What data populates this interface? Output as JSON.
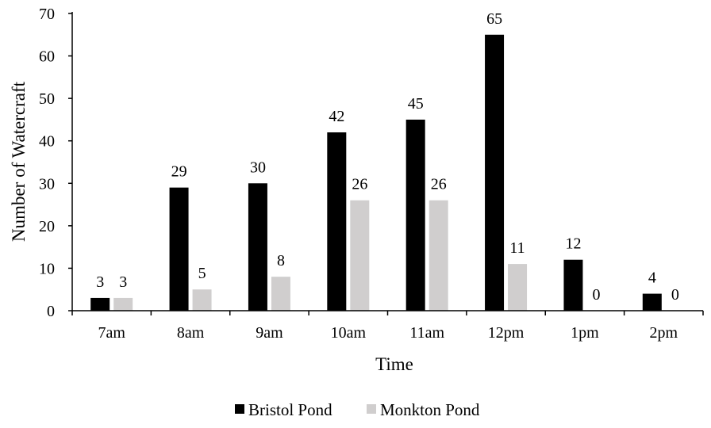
{
  "chart_data": {
    "type": "bar",
    "xlabel": "Time",
    "ylabel": "Number of Watercraft",
    "ylim": [
      0,
      70
    ],
    "yticks": [
      0,
      10,
      20,
      30,
      40,
      50,
      60,
      70
    ],
    "categories": [
      "7am",
      "8am",
      "9am",
      "10am",
      "11am",
      "12pm",
      "1pm",
      "2pm"
    ],
    "series": [
      {
        "name": "Bristol Pond",
        "color": "#000000",
        "values": [
          3,
          29,
          30,
          42,
          45,
          65,
          12,
          4
        ]
      },
      {
        "name": "Monkton Pond",
        "color": "#d0cece",
        "values": [
          3,
          5,
          8,
          26,
          26,
          11,
          0,
          0
        ]
      }
    ],
    "data_labels": true,
    "grid": false,
    "legend": "bottom"
  }
}
